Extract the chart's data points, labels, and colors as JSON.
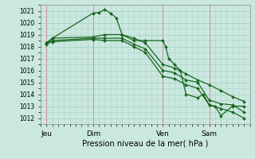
{
  "bg_color": "#cbe8e0",
  "grid_color": "#a8d4c8",
  "line_color": "#1a6620",
  "vline_color": "#cc8888",
  "xlabel_text": "Pression niveau de la mer( hPa )",
  "ylim": [
    1011.5,
    1021.5
  ],
  "yticks": [
    1012,
    1013,
    1014,
    1015,
    1016,
    1017,
    1018,
    1019,
    1020,
    1021
  ],
  "x_tick_labels": [
    "Jeu",
    "Dim",
    "Ven",
    "Sam"
  ],
  "x_tick_positions": [
    0,
    8,
    20,
    28
  ],
  "x_vlines": [
    0,
    8,
    20,
    28
  ],
  "xlim": [
    -1,
    35
  ],
  "series": [
    {
      "x": [
        0,
        1,
        8,
        9,
        10,
        11,
        12,
        13,
        15,
        17,
        20,
        20.5,
        21,
        22,
        23,
        24,
        26,
        27,
        28,
        29,
        30,
        32,
        34
      ],
      "y": [
        1018.3,
        1018.7,
        1020.8,
        1020.85,
        1021.1,
        1020.8,
        1020.4,
        1019.0,
        1018.5,
        1018.5,
        1018.5,
        1018.0,
        1017.0,
        1016.5,
        1016.0,
        1014.0,
        1013.7,
        1014.0,
        1013.1,
        1013.0,
        1012.2,
        1013.0,
        1013.0
      ]
    },
    {
      "x": [
        0,
        1,
        8,
        10,
        13,
        15,
        17,
        20,
        22,
        24,
        26,
        28,
        30,
        32,
        34
      ],
      "y": [
        1018.3,
        1018.7,
        1018.8,
        1019.0,
        1019.0,
        1018.7,
        1018.3,
        1016.5,
        1016.2,
        1015.7,
        1015.2,
        1014.8,
        1014.3,
        1013.8,
        1013.4
      ]
    },
    {
      "x": [
        0,
        1,
        8,
        10,
        13,
        15,
        17,
        20,
        22,
        24,
        26,
        28,
        30,
        32,
        34
      ],
      "y": [
        1018.3,
        1018.5,
        1018.7,
        1018.7,
        1018.7,
        1018.2,
        1017.8,
        1016.0,
        1015.8,
        1015.2,
        1015.0,
        1013.5,
        1013.2,
        1013.1,
        1012.5
      ]
    },
    {
      "x": [
        0,
        1,
        8,
        10,
        13,
        15,
        17,
        20,
        22,
        24,
        26,
        28,
        30,
        32,
        34
      ],
      "y": [
        1018.2,
        1018.4,
        1018.6,
        1018.5,
        1018.5,
        1018.0,
        1017.5,
        1015.5,
        1015.3,
        1014.8,
        1014.5,
        1013.1,
        1012.8,
        1012.5,
        1012.0
      ]
    }
  ]
}
